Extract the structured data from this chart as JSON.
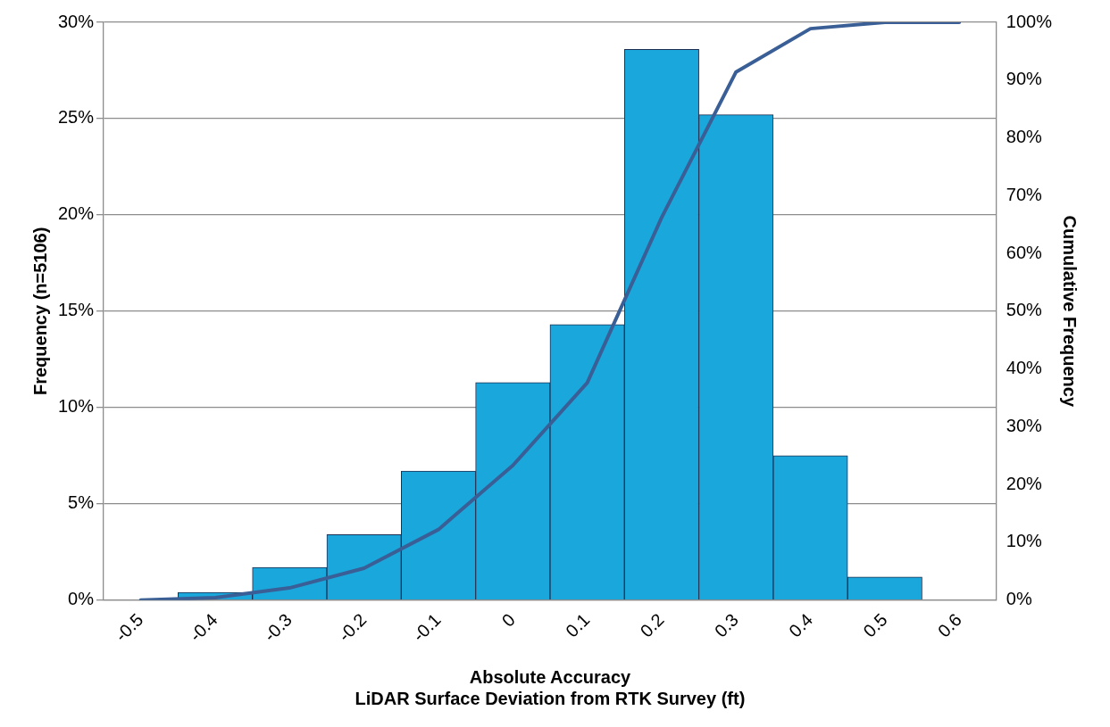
{
  "chart_data": {
    "type": "bar",
    "xlabel": "Absolute Accuracy\nLiDAR Surface Deviation from RTK Survey (ft)",
    "ylabel": "Frequency (n=5106)",
    "y2label": "Cumulative Frequency",
    "categories": [
      "-0.5",
      "-0.4",
      "-0.3",
      "-0.2",
      "-0.1",
      "0",
      "0.1",
      "0.2",
      "0.3",
      "0.4",
      "0.5",
      "0.6"
    ],
    "series": [
      {
        "color": "#1aa8dc",
        "values": [
          0,
          0.4,
          1.7,
          3.4,
          6.7,
          11.3,
          14.3,
          28.6,
          25.2,
          7.5,
          1.2,
          0
        ]
      },
      {
        "type": "line",
        "axis": "y2",
        "color": "#3a5f96",
        "values": [
          0,
          0.4,
          2.1,
          5.5,
          12.2,
          23.3,
          37.6,
          66.2,
          91.4,
          98.9,
          100,
          100
        ]
      }
    ],
    "ylim": [
      0,
      30
    ],
    "yticks": [
      {
        "value": 0,
        "label": "0%"
      },
      {
        "value": 5,
        "label": "5%"
      },
      {
        "value": 10,
        "label": "10%"
      },
      {
        "value": 15,
        "label": "15%"
      },
      {
        "value": 20,
        "label": "20%"
      },
      {
        "value": 25,
        "label": "25%"
      },
      {
        "value": 30,
        "label": "30%"
      }
    ],
    "y2lim": [
      0,
      100
    ],
    "y2ticks": [
      {
        "value": 0,
        "label": "0%"
      },
      {
        "value": 10,
        "label": "10%"
      },
      {
        "value": 20,
        "label": "20%"
      },
      {
        "value": 30,
        "label": "30%"
      },
      {
        "value": 40,
        "label": "40%"
      },
      {
        "value": 50,
        "label": "50%"
      },
      {
        "value": 60,
        "label": "60%"
      },
      {
        "value": 70,
        "label": "70%"
      },
      {
        "value": 80,
        "label": "80%"
      },
      {
        "value": 90,
        "label": "90%"
      },
      {
        "value": 100,
        "label": "100%"
      }
    ],
    "grid": "y",
    "legend": false,
    "marker": "none"
  }
}
